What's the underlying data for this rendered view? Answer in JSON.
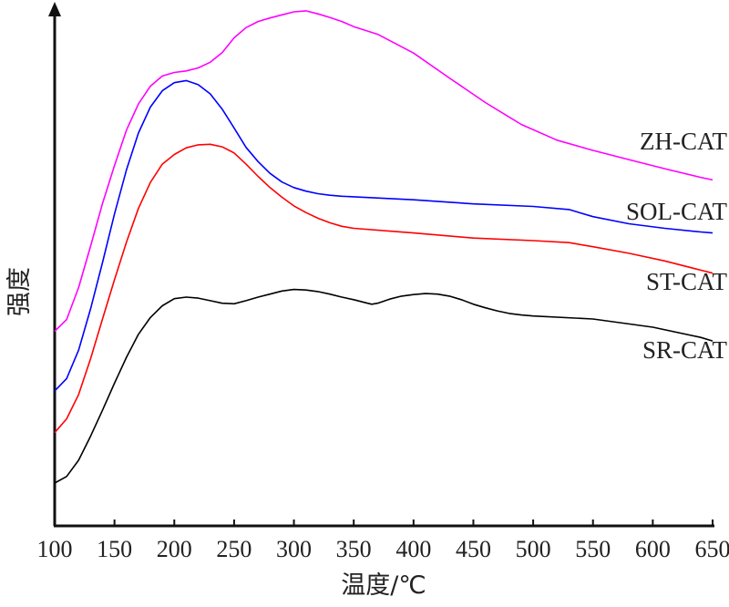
{
  "chart_data": {
    "type": "line",
    "title": "",
    "xlabel": "温度/℃",
    "ylabel": "强度",
    "xlim": [
      100,
      650
    ],
    "x_ticks": [
      "100",
      "150",
      "200",
      "250",
      "300",
      "350",
      "400",
      "450",
      "500",
      "550",
      "600",
      "650"
    ],
    "y_ticks": false,
    "grid": false,
    "series": [
      {
        "name": "ZH-CAT",
        "color": "#ff00ff",
        "points": [
          [
            100,
            0.382
          ],
          [
            110,
            0.405
          ],
          [
            120,
            0.468
          ],
          [
            130,
            0.549
          ],
          [
            140,
            0.633
          ],
          [
            150,
            0.707
          ],
          [
            160,
            0.777
          ],
          [
            170,
            0.828
          ],
          [
            180,
            0.863
          ],
          [
            190,
            0.883
          ],
          [
            200,
            0.89
          ],
          [
            210,
            0.893
          ],
          [
            220,
            0.899
          ],
          [
            230,
            0.91
          ],
          [
            240,
            0.929
          ],
          [
            250,
            0.958
          ],
          [
            260,
            0.978
          ],
          [
            270,
            0.99
          ],
          [
            280,
            0.997
          ],
          [
            290,
            1.003
          ],
          [
            300,
            1.009
          ],
          [
            310,
            1.011
          ],
          [
            320,
            1.005
          ],
          [
            330,
            0.998
          ],
          [
            340,
            0.99
          ],
          [
            350,
            0.98
          ],
          [
            370,
            0.965
          ],
          [
            400,
            0.928
          ],
          [
            430,
            0.879
          ],
          [
            460,
            0.831
          ],
          [
            490,
            0.788
          ],
          [
            520,
            0.757
          ],
          [
            550,
            0.737
          ],
          [
            580,
            0.719
          ],
          [
            610,
            0.701
          ],
          [
            640,
            0.684
          ],
          [
            650,
            0.679
          ]
        ]
      },
      {
        "name": "SOL-CAT",
        "color": "#0000ff",
        "points": [
          [
            100,
            0.265
          ],
          [
            110,
            0.289
          ],
          [
            120,
            0.345
          ],
          [
            130,
            0.426
          ],
          [
            140,
            0.517
          ],
          [
            150,
            0.612
          ],
          [
            160,
            0.699
          ],
          [
            170,
            0.771
          ],
          [
            180,
            0.822
          ],
          [
            190,
            0.854
          ],
          [
            200,
            0.87
          ],
          [
            210,
            0.874
          ],
          [
            220,
            0.866
          ],
          [
            230,
            0.848
          ],
          [
            240,
            0.818
          ],
          [
            250,
            0.781
          ],
          [
            260,
            0.743
          ],
          [
            270,
            0.715
          ],
          [
            280,
            0.692
          ],
          [
            290,
            0.675
          ],
          [
            300,
            0.664
          ],
          [
            310,
            0.657
          ],
          [
            320,
            0.652
          ],
          [
            330,
            0.649
          ],
          [
            340,
            0.647
          ],
          [
            350,
            0.646
          ],
          [
            400,
            0.64
          ],
          [
            450,
            0.632
          ],
          [
            500,
            0.627
          ],
          [
            530,
            0.621
          ],
          [
            550,
            0.607
          ],
          [
            580,
            0.593
          ],
          [
            610,
            0.584
          ],
          [
            640,
            0.577
          ],
          [
            650,
            0.575
          ]
        ]
      },
      {
        "name": "ST-CAT",
        "color": "#ff0000",
        "points": [
          [
            100,
            0.183
          ],
          [
            110,
            0.21
          ],
          [
            120,
            0.258
          ],
          [
            130,
            0.328
          ],
          [
            140,
            0.406
          ],
          [
            150,
            0.483
          ],
          [
            160,
            0.557
          ],
          [
            170,
            0.623
          ],
          [
            180,
            0.674
          ],
          [
            190,
            0.71
          ],
          [
            200,
            0.729
          ],
          [
            210,
            0.742
          ],
          [
            220,
            0.748
          ],
          [
            230,
            0.749
          ],
          [
            240,
            0.744
          ],
          [
            250,
            0.732
          ],
          [
            260,
            0.71
          ],
          [
            270,
            0.686
          ],
          [
            280,
            0.664
          ],
          [
            290,
            0.645
          ],
          [
            300,
            0.628
          ],
          [
            310,
            0.615
          ],
          [
            320,
            0.604
          ],
          [
            330,
            0.595
          ],
          [
            340,
            0.588
          ],
          [
            350,
            0.584
          ],
          [
            400,
            0.575
          ],
          [
            450,
            0.565
          ],
          [
            500,
            0.56
          ],
          [
            530,
            0.556
          ],
          [
            550,
            0.548
          ],
          [
            580,
            0.535
          ],
          [
            610,
            0.52
          ],
          [
            640,
            0.502
          ],
          [
            650,
            0.496
          ]
        ]
      },
      {
        "name": "SR-CAT",
        "color": "#000000",
        "points": [
          [
            100,
            0.084
          ],
          [
            110,
            0.097
          ],
          [
            120,
            0.129
          ],
          [
            130,
            0.176
          ],
          [
            140,
            0.227
          ],
          [
            150,
            0.28
          ],
          [
            160,
            0.331
          ],
          [
            170,
            0.376
          ],
          [
            180,
            0.409
          ],
          [
            190,
            0.432
          ],
          [
            200,
            0.446
          ],
          [
            210,
            0.449
          ],
          [
            220,
            0.447
          ],
          [
            230,
            0.442
          ],
          [
            240,
            0.437
          ],
          [
            250,
            0.436
          ],
          [
            260,
            0.442
          ],
          [
            270,
            0.449
          ],
          [
            280,
            0.455
          ],
          [
            290,
            0.461
          ],
          [
            300,
            0.464
          ],
          [
            310,
            0.463
          ],
          [
            320,
            0.46
          ],
          [
            330,
            0.455
          ],
          [
            340,
            0.449
          ],
          [
            350,
            0.444
          ],
          [
            360,
            0.438
          ],
          [
            365,
            0.435
          ],
          [
            370,
            0.437
          ],
          [
            380,
            0.445
          ],
          [
            390,
            0.451
          ],
          [
            400,
            0.454
          ],
          [
            410,
            0.456
          ],
          [
            420,
            0.455
          ],
          [
            430,
            0.451
          ],
          [
            440,
            0.444
          ],
          [
            450,
            0.435
          ],
          [
            460,
            0.428
          ],
          [
            470,
            0.422
          ],
          [
            480,
            0.417
          ],
          [
            490,
            0.414
          ],
          [
            500,
            0.412
          ],
          [
            550,
            0.406
          ],
          [
            600,
            0.39
          ],
          [
            640,
            0.37
          ],
          [
            650,
            0.363
          ]
        ]
      }
    ]
  }
}
